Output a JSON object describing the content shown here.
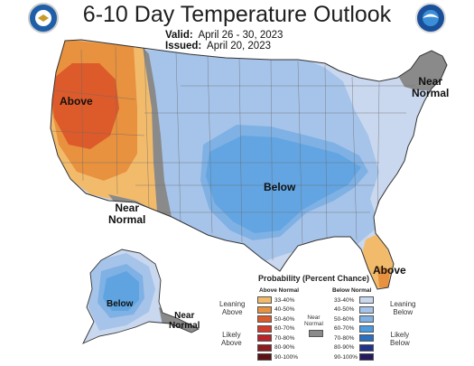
{
  "header": {
    "title": "6-10 Day Temperature Outlook",
    "valid_label": "Valid:",
    "valid_value": "April 26 - 30, 2023",
    "issued_label": "Issued:",
    "issued_value": "April 20, 2023"
  },
  "map_labels": {
    "above_west": "Above",
    "near_normal_west_1": "Near",
    "near_normal_west_2": "Normal",
    "below_central": "Below",
    "near_normal_ne_1": "Near",
    "near_normal_ne_2": "Normal",
    "above_florida": "Above",
    "below_alaska": "Below",
    "near_normal_ak_1": "Near",
    "near_normal_ak_2": "Normal"
  },
  "legend": {
    "title": "Probability (Percent Chance)",
    "above_header": "Above Normal",
    "below_header": "Below Normal",
    "near_label_1": "Near",
    "near_label_2": "Normal",
    "leaning_above": [
      "Leaning",
      "Above"
    ],
    "likely_above": [
      "Likely",
      "Above"
    ],
    "leaning_below": [
      "Leaning",
      "Below"
    ],
    "likely_below": [
      "Likely",
      "Below"
    ],
    "above_items": [
      {
        "text": "33-40%",
        "color": "#f2bb6b"
      },
      {
        "text": "40-50%",
        "color": "#e8913e"
      },
      {
        "text": "50-60%",
        "color": "#dd5a2a"
      },
      {
        "text": "60-70%",
        "color": "#d43a2b"
      },
      {
        "text": "70-80%",
        "color": "#b82228"
      },
      {
        "text": "80-90%",
        "color": "#8e1b20"
      },
      {
        "text": "90-100%",
        "color": "#5c1214"
      }
    ],
    "below_items": [
      {
        "text": "33-40%",
        "color": "#c9d8ef"
      },
      {
        "text": "40-50%",
        "color": "#a6c4ea"
      },
      {
        "text": "50-60%",
        "color": "#7fb1e4"
      },
      {
        "text": "60-70%",
        "color": "#4a9be0"
      },
      {
        "text": "70-80%",
        "color": "#2a6fc0"
      },
      {
        "text": "80-90%",
        "color": "#22328a"
      },
      {
        "text": "90-100%",
        "color": "#241a5c"
      }
    ],
    "near_color": "#8a8a8a"
  },
  "logos": [
    "commerce-seal",
    "noaa-logo"
  ]
}
